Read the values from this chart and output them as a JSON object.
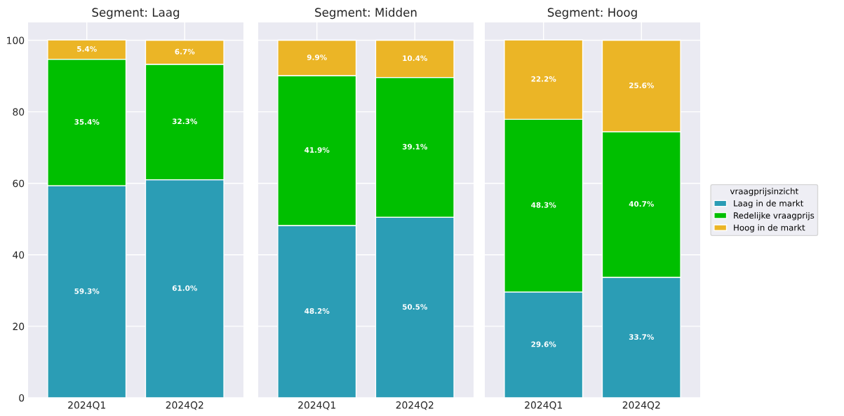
{
  "chart_data": [
    {
      "type": "bar",
      "title": "Segment: Laag",
      "categories": [
        "2024Q1",
        "2024Q2"
      ],
      "stacked": true,
      "ylim": [
        0,
        105
      ],
      "yticks": [
        0,
        20,
        40,
        60,
        80,
        100
      ],
      "grid": true,
      "legend": false,
      "series": [
        {
          "color": "#2b9db5",
          "values": [
            59.3,
            61.0
          ],
          "value_labels": [
            "59.3%",
            "61.0%"
          ]
        },
        {
          "color": "#00bf00",
          "values": [
            35.4,
            32.3
          ],
          "value_labels": [
            "35.4%",
            "32.3%"
          ]
        },
        {
          "color": "#ebb526",
          "values": [
            5.4,
            6.7
          ],
          "value_labels": [
            "5.4%",
            "6.7%"
          ]
        }
      ]
    },
    {
      "type": "bar",
      "title": "Segment: Midden",
      "categories": [
        "2024Q1",
        "2024Q2"
      ],
      "stacked": true,
      "ylim": [
        0,
        105
      ],
      "yticks": [
        0,
        20,
        40,
        60,
        80,
        100
      ],
      "grid": true,
      "legend": false,
      "tick_labels": "x",
      "series": [
        {
          "color": "#2b9db5",
          "values": [
            48.2,
            50.5
          ],
          "value_labels": [
            "48.2%",
            "50.5%"
          ]
        },
        {
          "color": "#00bf00",
          "values": [
            41.9,
            39.1
          ],
          "value_labels": [
            "41.9%",
            "39.1%"
          ]
        },
        {
          "color": "#ebb526",
          "values": [
            9.9,
            10.4
          ],
          "value_labels": [
            "9.9%",
            "10.4%"
          ]
        }
      ]
    },
    {
      "type": "bar",
      "title": "Segment: Hoog",
      "categories": [
        "2024Q1",
        "2024Q2"
      ],
      "stacked": true,
      "ylim": [
        0,
        105
      ],
      "yticks": [
        0,
        20,
        40,
        60,
        80,
        100
      ],
      "grid": true,
      "legend": "right",
      "legend_title": "vraagprijsinzicht",
      "tick_labels": "x",
      "series": [
        {
          "name": "Laag in de markt",
          "color": "#2b9db5",
          "values": [
            29.6,
            33.7
          ],
          "value_labels": [
            "29.6%",
            "33.7%"
          ]
        },
        {
          "name": "Redelijke vraagprijs",
          "color": "#00bf00",
          "values": [
            48.3,
            40.7
          ],
          "value_labels": [
            "48.3%",
            "40.7%"
          ]
        },
        {
          "name": "Hoog in de markt",
          "color": "#ebb526",
          "values": [
            22.2,
            25.6
          ],
          "value_labels": [
            "22.2%",
            "25.6%"
          ]
        }
      ]
    }
  ]
}
